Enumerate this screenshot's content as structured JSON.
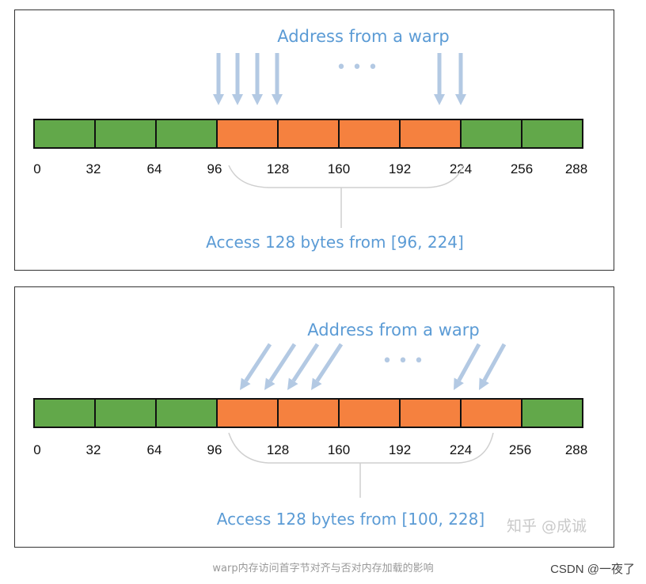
{
  "colors": {
    "cell_unaccessed": "#62a84a",
    "cell_accessed": "#f5813f",
    "arrow": "#b3c9e3",
    "annotation_text": "#5b9bd5",
    "border": "#111111"
  },
  "panel1": {
    "address_label": "Address from a warp",
    "ellipsis": "• • •",
    "offsets": [
      "0",
      "32",
      "64",
      "96",
      "128",
      "160",
      "192",
      "224",
      "256",
      "288"
    ],
    "accessed_cells": [
      3,
      4,
      5,
      6
    ],
    "access_label": "Access 128 bytes from [96, 224]"
  },
  "panel2": {
    "address_label": "Address from a warp",
    "ellipsis": "• • •",
    "offsets": [
      "0",
      "32",
      "64",
      "96",
      "128",
      "160",
      "192",
      "224",
      "256",
      "288"
    ],
    "accessed_cells": [
      3,
      4,
      5,
      6,
      7
    ],
    "access_label": "Access 128 bytes from [100, 228]"
  },
  "watermark": {
    "zhihu": "知乎 @成诚"
  },
  "caption": "warp内存访问首字节对齐与否对内存加载的影响",
  "credit": "CSDN @一夜了"
}
